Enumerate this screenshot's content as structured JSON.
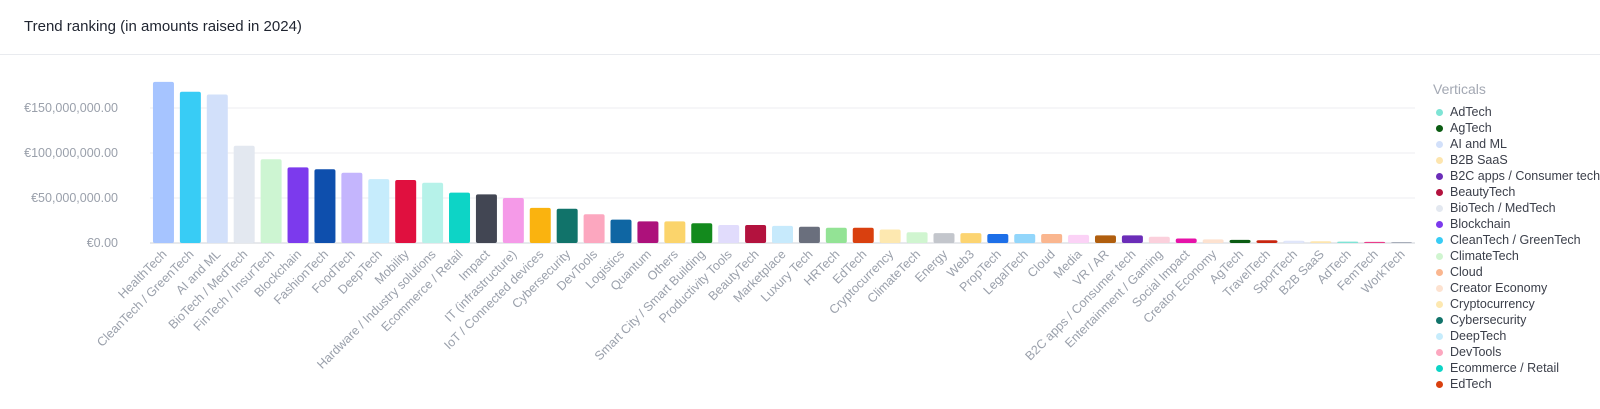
{
  "header": {
    "title": "Trend ranking (in amounts raised in 2024)"
  },
  "chart_data": {
    "type": "bar",
    "title": "Trend ranking (in amounts raised in 2024)",
    "xlabel": "",
    "ylabel": "",
    "ylim": [
      0,
      180000000
    ],
    "yticks": [
      {
        "value": 0,
        "label": "€0.00"
      },
      {
        "value": 50000000,
        "label": "€50,000,000.00"
      },
      {
        "value": 100000000,
        "label": "€100,000,000.00"
      },
      {
        "value": 150000000,
        "label": "€150,000,000.00"
      }
    ],
    "grid": true,
    "legend_position": "right",
    "bars": [
      {
        "category": "HealthTech",
        "value": 179000000,
        "color": "#a6c4ff"
      },
      {
        "category": "CleanTech / GreenTech",
        "value": 168000000,
        "color": "#38ccf5"
      },
      {
        "category": "AI and ML",
        "value": 165000000,
        "color": "#d2e0fa"
      },
      {
        "category": "BioTech / MedTech",
        "value": 108000000,
        "color": "#e3e8f0"
      },
      {
        "category": "FinTech / InsurTech",
        "value": 93000000,
        "color": "#cdf5d2"
      },
      {
        "category": "Blockchain",
        "value": 84000000,
        "color": "#7c3aed"
      },
      {
        "category": "FashionTech",
        "value": 82000000,
        "color": "#0e4fad"
      },
      {
        "category": "FoodTech",
        "value": 78000000,
        "color": "#c4b5fd"
      },
      {
        "category": "DeepTech",
        "value": 71000000,
        "color": "#c6ecfc"
      },
      {
        "category": "Mobility",
        "value": 70000000,
        "color": "#e0103f"
      },
      {
        "category": "Hardware / Industry solutions",
        "value": 67000000,
        "color": "#b6f2e9"
      },
      {
        "category": "Ecommerce / Retail",
        "value": 56000000,
        "color": "#0dd4c6"
      },
      {
        "category": "Impact",
        "value": 54000000,
        "color": "#424653"
      },
      {
        "category": "IT (infrastructure)",
        "value": 50000000,
        "color": "#f59ae8"
      },
      {
        "category": "IoT / Connected devices",
        "value": 39000000,
        "color": "#fab30f"
      },
      {
        "category": "Cybersecurity",
        "value": 38000000,
        "color": "#11736a"
      },
      {
        "category": "DevTools",
        "value": 32000000,
        "color": "#fca7bf"
      },
      {
        "category": "Logistics",
        "value": 26000000,
        "color": "#0f66a3"
      },
      {
        "category": "Quantum",
        "value": 24000000,
        "color": "#ad117b"
      },
      {
        "category": "Others",
        "value": 24000000,
        "color": "#fbd46b"
      },
      {
        "category": "Smart City / Smart Building",
        "value": 22000000,
        "color": "#138a1d"
      },
      {
        "category": "Productivity Tools",
        "value": 20000000,
        "color": "#e1dcfc"
      },
      {
        "category": "BeautyTech",
        "value": 20000000,
        "color": "#b3123e"
      },
      {
        "category": "Marketplace",
        "value": 19000000,
        "color": "#c7eafc"
      },
      {
        "category": "Luxury Tech",
        "value": 18000000,
        "color": "#6a6f7d"
      },
      {
        "category": "HRTech",
        "value": 17000000,
        "color": "#93e395"
      },
      {
        "category": "EdTech",
        "value": 17000000,
        "color": "#d9400f"
      },
      {
        "category": "Cryptocurrency",
        "value": 15000000,
        "color": "#fde8b0"
      },
      {
        "category": "ClimateTech",
        "value": 12000000,
        "color": "#d0f5d0"
      },
      {
        "category": "Energy",
        "value": 11000000,
        "color": "#c3c6cc"
      },
      {
        "category": "Web3",
        "value": 11000000,
        "color": "#fcd471"
      },
      {
        "category": "PropTech",
        "value": 10000000,
        "color": "#1d6fe8"
      },
      {
        "category": "LegalTech",
        "value": 10000000,
        "color": "#92d6fb"
      },
      {
        "category": "Cloud",
        "value": 10000000,
        "color": "#fab68f"
      },
      {
        "category": "Media",
        "value": 9000000,
        "color": "#fbd2f6"
      },
      {
        "category": "VR / AR",
        "value": 8500000,
        "color": "#b05e0e"
      },
      {
        "category": "B2C apps / Consumer tech",
        "value": 8500000,
        "color": "#6b2db8"
      },
      {
        "category": "Entertainment / Gaming",
        "value": 7000000,
        "color": "#fbd0dc"
      },
      {
        "category": "Social Impact",
        "value": 5000000,
        "color": "#e612a8"
      },
      {
        "category": "Creator Economy",
        "value": 4000000,
        "color": "#fde2d0"
      },
      {
        "category": "AgTech",
        "value": 3500000,
        "color": "#0b5c12"
      },
      {
        "category": "TravelTech",
        "value": 3000000,
        "color": "#c8250f"
      },
      {
        "category": "SportTech",
        "value": 2500000,
        "color": "#e0e6fa"
      },
      {
        "category": "B2B SaaS",
        "value": 2000000,
        "color": "#fde5ae"
      },
      {
        "category": "AdTech",
        "value": 1500000,
        "color": "#7ee4d5"
      },
      {
        "category": "FemTech",
        "value": 1200000,
        "color": "#ea3d8a"
      },
      {
        "category": "WorkTech",
        "value": 300000,
        "color": "#8c93a3"
      }
    ]
  },
  "legend": {
    "title": "Verticals",
    "items": [
      {
        "label": "AdTech",
        "color": "#7ee4d5"
      },
      {
        "label": "AgTech",
        "color": "#0b5c12"
      },
      {
        "label": "AI and ML",
        "color": "#d2e0fa"
      },
      {
        "label": "B2B SaaS",
        "color": "#fde5ae"
      },
      {
        "label": "B2C apps / Consumer tech",
        "color": "#6b2db8"
      },
      {
        "label": "BeautyTech",
        "color": "#b3123e"
      },
      {
        "label": "BioTech / MedTech",
        "color": "#e3e8f0"
      },
      {
        "label": "Blockchain",
        "color": "#7c3aed"
      },
      {
        "label": "CleanTech / GreenTech",
        "color": "#38ccf5"
      },
      {
        "label": "ClimateTech",
        "color": "#d0f5d0"
      },
      {
        "label": "Cloud",
        "color": "#fab68f"
      },
      {
        "label": "Creator Economy",
        "color": "#fde2d0"
      },
      {
        "label": "Cryptocurrency",
        "color": "#fde8b0"
      },
      {
        "label": "Cybersecurity",
        "color": "#11736a"
      },
      {
        "label": "DeepTech",
        "color": "#c6ecfc"
      },
      {
        "label": "DevTools",
        "color": "#fca7bf"
      },
      {
        "label": "Ecommerce / Retail",
        "color": "#0dd4c6"
      },
      {
        "label": "EdTech",
        "color": "#d9400f"
      }
    ]
  }
}
